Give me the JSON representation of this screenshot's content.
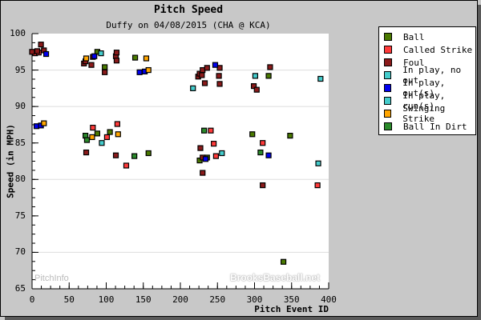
{
  "header": {
    "title": "Pitch Speed",
    "subtitle": "Duffy on 04/08/2015 (CHA @ KCA)"
  },
  "axes": {
    "xlabel": "Pitch Event ID",
    "ylabel": "Speed (in MPH)",
    "xticks": [
      "0",
      "50",
      "100",
      "150",
      "200",
      "250",
      "300",
      "350",
      "400"
    ],
    "yticks": [
      "100",
      "95",
      "90",
      "85",
      "80",
      "75",
      "70",
      "65"
    ]
  },
  "watermarks": {
    "left": "PitchInfo",
    "right": "BrooksBaseball.net"
  },
  "legend": [
    {
      "label": "Ball",
      "color": "#4a7a00"
    },
    {
      "label": "Called Strike",
      "color": "#ff3a3a"
    },
    {
      "label": "Foul",
      "color": "#8b1a1a"
    },
    {
      "label": "In play, no out",
      "color": "#44cccc"
    },
    {
      "label": "In play, out(s)",
      "color": "#0000ee"
    },
    {
      "label": "In play, run(s)",
      "color": "#44cccc"
    },
    {
      "label": "Swinging Strike",
      "color": "#ffa500"
    },
    {
      "label": "Ball In Dirt",
      "color": "#2a8a2a"
    }
  ],
  "chart_data": {
    "type": "scatter",
    "title": "Pitch Speed",
    "subtitle": "Duffy on 04/08/2015 (CHA @ KCA)",
    "xlabel": "Pitch Event ID",
    "ylabel": "Speed (in MPH)",
    "xlim": [
      0,
      400
    ],
    "ylim": [
      65,
      100
    ],
    "grid": "horizontal at 70, 80, 90, 95",
    "legend_position": "right",
    "series": [
      {
        "name": "Ball",
        "color": "#4a7a00",
        "points": [
          [
            88,
            97.5
          ],
          [
            98,
            95.4
          ],
          [
            139,
            96.7
          ],
          [
            88,
            86.3
          ],
          [
            105,
            86.5
          ],
          [
            157,
            83.6
          ],
          [
            226,
            82.6
          ],
          [
            236,
            83.0
          ],
          [
            348,
            86.0
          ],
          [
            319,
            94.2
          ],
          [
            339,
            68.7
          ],
          [
            297,
            86.2
          ]
        ]
      },
      {
        "name": "Called Strike",
        "color": "#ff3a3a",
        "points": [
          [
            4,
            97.3
          ],
          [
            9,
            97.4
          ],
          [
            82,
            87.1
          ],
          [
            115,
            87.6
          ],
          [
            101,
            85.8
          ],
          [
            241,
            86.7
          ],
          [
            245,
            84.9
          ],
          [
            248,
            83.2
          ],
          [
            311,
            85.0
          ],
          [
            385,
            79.2
          ],
          [
            127,
            81.9
          ]
        ]
      },
      {
        "name": "Foul",
        "color": "#8b1a1a",
        "points": [
          [
            0,
            97.5
          ],
          [
            7,
            97.6
          ],
          [
            12,
            98.5
          ],
          [
            16,
            97.7
          ],
          [
            70,
            95.9
          ],
          [
            72,
            96.2
          ],
          [
            80,
            95.7
          ],
          [
            82,
            96.8
          ],
          [
            98,
            94.7
          ],
          [
            113,
            96.9
          ],
          [
            114,
            96.3
          ],
          [
            114,
            97.4
          ],
          [
            224,
            94.1
          ],
          [
            226,
            94.5
          ],
          [
            229,
            94.3
          ],
          [
            230,
            95.0
          ],
          [
            233,
            93.2
          ],
          [
            236,
            95.3
          ],
          [
            252,
            94.2
          ],
          [
            253,
            93.1
          ],
          [
            299,
            92.8
          ],
          [
            303,
            92.3
          ],
          [
            253,
            95.3
          ],
          [
            321,
            95.4
          ],
          [
            73,
            83.7
          ],
          [
            113,
            83.3
          ],
          [
            227,
            84.3
          ],
          [
            230,
            83.0
          ],
          [
            230,
            80.9
          ],
          [
            311,
            79.2
          ]
        ]
      },
      {
        "name": "In play, no out",
        "color": "#44cccc",
        "points": [
          [
            93,
            97.3
          ],
          [
            217,
            92.5
          ],
          [
            301,
            94.2
          ],
          [
            389,
            93.8
          ],
          [
            94,
            85.0
          ],
          [
            256,
            83.6
          ]
        ]
      },
      {
        "name": "In play, out(s)",
        "color": "#0000ee",
        "points": [
          [
            19,
            97.2
          ],
          [
            84,
            96.9
          ],
          [
            145,
            94.7
          ],
          [
            152,
            94.8
          ],
          [
            247,
            95.7
          ],
          [
            6,
            87.3
          ],
          [
            12,
            87.4
          ],
          [
            234,
            82.8
          ],
          [
            319,
            83.3
          ]
        ]
      },
      {
        "name": "In play, run(s)",
        "color": "#44cccc",
        "points": [
          [
            386,
            82.2
          ]
        ]
      },
      {
        "name": "Swinging Strike",
        "color": "#ffa500",
        "points": [
          [
            73,
            96.6
          ],
          [
            154,
            96.6
          ],
          [
            157,
            95.0
          ],
          [
            16,
            87.7
          ],
          [
            81,
            85.8
          ],
          [
            116,
            86.2
          ]
        ]
      },
      {
        "name": "Ball In Dirt",
        "color": "#2a8a2a",
        "points": [
          [
            72,
            86.0
          ],
          [
            74,
            85.4
          ],
          [
            138,
            83.2
          ],
          [
            232,
            86.7
          ],
          [
            308,
            83.7
          ]
        ]
      }
    ]
  }
}
